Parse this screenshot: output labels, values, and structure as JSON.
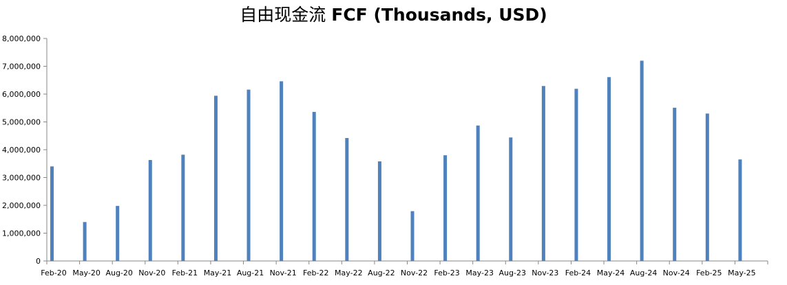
{
  "chart_data": {
    "type": "bar",
    "title_zh": "自由现金流",
    "title_en": "FCF (Thousands, USD)",
    "xlabel": "",
    "ylabel": "",
    "ylim": [
      0,
      8000000
    ],
    "yticks": [
      0,
      1000000,
      2000000,
      3000000,
      4000000,
      5000000,
      6000000,
      7000000,
      8000000
    ],
    "ytick_labels": [
      "0",
      "1,000,000",
      "2,000,000",
      "3,000,000",
      "4,000,000",
      "5,000,000",
      "6,000,000",
      "7,000,000",
      "8,000,000"
    ],
    "grid": false,
    "legend": false,
    "bar_color": "#4f81bd",
    "categories": [
      "Feb-20",
      "May-20",
      "Aug-20",
      "Nov-20",
      "Feb-21",
      "May-21",
      "Aug-21",
      "Nov-21",
      "Feb-22",
      "May-22",
      "Aug-22",
      "Nov-22",
      "Feb-23",
      "May-23",
      "Aug-23",
      "Nov-23",
      "Feb-24",
      "May-24",
      "Aug-24",
      "Nov-24",
      "Feb-25",
      "May-25"
    ],
    "values": [
      3400000,
      1400000,
      1980000,
      3630000,
      3820000,
      5940000,
      6160000,
      6460000,
      5360000,
      4420000,
      3580000,
      1790000,
      3800000,
      4870000,
      4440000,
      6290000,
      6190000,
      6610000,
      7200000,
      5510000,
      5300000,
      3650000
    ]
  }
}
